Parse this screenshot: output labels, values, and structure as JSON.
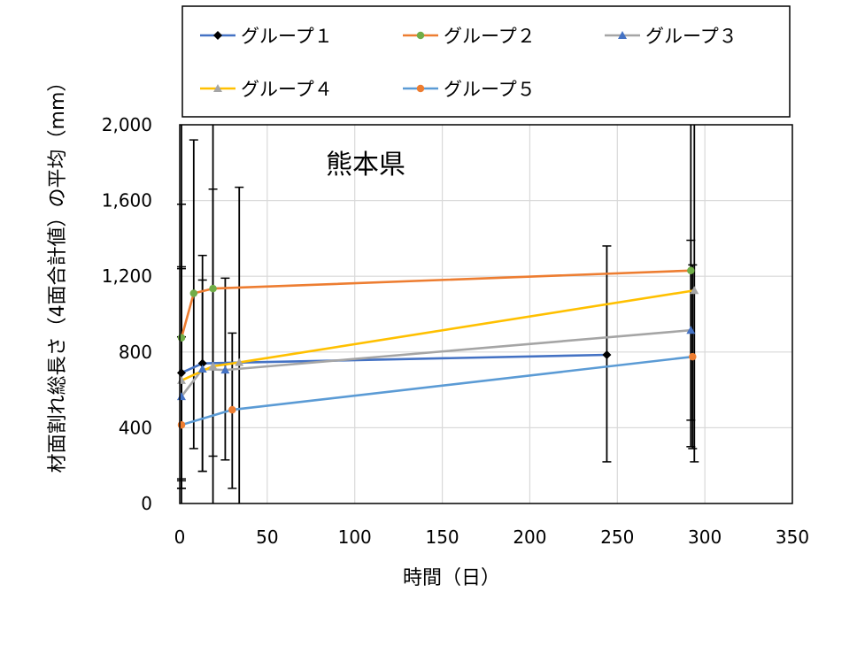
{
  "chart_data": {
    "type": "line",
    "annotation": "熊本県",
    "xlabel": "時間（日）",
    "ylabel": "材面割れ総長さ（4面合計値）の平均（mm）",
    "xlim": [
      0,
      350
    ],
    "ylim": [
      0,
      2000
    ],
    "x_ticks": [
      0,
      50,
      100,
      150,
      200,
      250,
      300,
      350
    ],
    "y_ticks": [
      0,
      400,
      800,
      1200,
      1600,
      2000
    ],
    "x_tick_labels": [
      "0",
      "50",
      "100",
      "150",
      "200",
      "250",
      "300",
      "350"
    ],
    "y_tick_labels": [
      "0",
      "400",
      "800",
      "1,200",
      "1,600",
      "2,000"
    ],
    "grid": true,
    "legend_position": "top",
    "series": [
      {
        "name": "グループ１",
        "color": "#4472c4",
        "marker": "diamond",
        "marker_color": "#000000",
        "x": [
          1,
          13,
          244
        ],
        "y": [
          690,
          740,
          785
        ],
        "err_low": [
          120,
          170,
          220
        ],
        "err_high": [
          1250,
          1310,
          1360
        ]
      },
      {
        "name": "グループ２",
        "color": "#ed7d31",
        "marker": "circle",
        "marker_color": "#70ad47",
        "x": [
          1,
          8,
          19,
          292
        ],
        "y": [
          875,
          1110,
          1135,
          1230
        ],
        "err_low": [
          130,
          290,
          250,
          300
        ],
        "err_high": [
          1240,
          1920,
          1660,
          1390
        ]
      },
      {
        "name": "グループ３",
        "color": "#a5a5a5",
        "marker": "triangle",
        "marker_color": "#4472c4",
        "x": [
          1,
          13,
          26,
          292
        ],
        "y": [
          565,
          710,
          705,
          915
        ],
        "err_low": [
          80,
          170,
          230,
          440
        ],
        "err_high": [
          2000,
          1180,
          1190,
          2000
        ]
      },
      {
        "name": "グループ４",
        "color": "#ffc000",
        "marker": "triangle",
        "marker_color": "#a5a5a5",
        "x": [
          1,
          19,
          34,
          294
        ],
        "y": [
          650,
          725,
          745,
          1125
        ],
        "err_low": [
          80,
          0,
          0,
          220
        ],
        "err_high": [
          1580,
          2000,
          1670,
          2000
        ]
      },
      {
        "name": "グループ５",
        "color": "#5b9bd5",
        "marker": "circle",
        "marker_color": "#ed7d31",
        "x": [
          1,
          30,
          293
        ],
        "y": [
          415,
          495,
          775
        ],
        "err_low": [
          0,
          80,
          290
        ],
        "err_high": [
          880,
          900,
          1260
        ]
      }
    ]
  }
}
